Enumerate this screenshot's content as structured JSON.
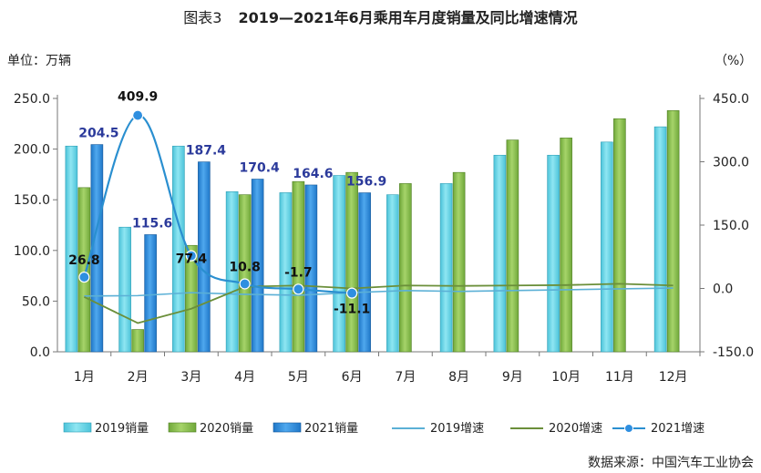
{
  "header": {
    "figure_label": "图表3",
    "title": "2019—2021年6月乘用车月度销量及同比增速情况"
  },
  "units": {
    "left": "单位：万辆",
    "right": "（%）"
  },
  "source": "数据来源：中国汽车工业协会",
  "colors": {
    "s2019": "#4cc3d9",
    "s2020": "#70a83a",
    "s2021": "#1f77c8",
    "g2019": "#5bb0d6",
    "g2020": "#6b8f3a",
    "g2021": "#2a8fd0",
    "label2021": "#2b3a9b"
  },
  "chart_data": {
    "type": "bar",
    "categories": [
      "1月",
      "2月",
      "3月",
      "4月",
      "5月",
      "6月",
      "7月",
      "8月",
      "9月",
      "10月",
      "11月",
      "12月"
    ],
    "y_left": {
      "lim": [
        0,
        250
      ],
      "ticks": [
        "0.0",
        "50.0",
        "100.0",
        "150.0",
        "200.0",
        "250.0"
      ]
    },
    "y_right": {
      "lim": [
        -150,
        450
      ],
      "ticks": [
        "-150.0",
        "0.0",
        "150.0",
        "300.0",
        "450.0"
      ]
    },
    "grid": false,
    "legend_position": "bottom",
    "bar_series": [
      {
        "name": "2019销量",
        "values": [
          203,
          123,
          203,
          158,
          157,
          174,
          155,
          166,
          194,
          194,
          207,
          222
        ]
      },
      {
        "name": "2020销量",
        "values": [
          162,
          22,
          105,
          155,
          168,
          177,
          166,
          177,
          209,
          211,
          230,
          238
        ]
      },
      {
        "name": "2021销量",
        "values": [
          204.5,
          115.6,
          187.4,
          170.4,
          164.6,
          156.9
        ]
      }
    ],
    "line_series": [
      {
        "name": "2019增速",
        "values": [
          -18,
          -17,
          -10,
          -14,
          -16,
          -10,
          -5,
          -7,
          -5,
          -3,
          -1,
          1
        ]
      },
      {
        "name": "2020增速",
        "values": [
          -20,
          -82,
          -48,
          4,
          7,
          0,
          7,
          6,
          7,
          8,
          11,
          7
        ]
      },
      {
        "name": "2021增速",
        "values": [
          26.8,
          409.9,
          77.4,
          10.8,
          -1.7,
          -11.1
        ]
      }
    ],
    "data_labels": {
      "bars_2021": [
        "204.5",
        "115.6",
        "187.4",
        "170.4",
        "164.6",
        "156.9"
      ],
      "growth_2021": [
        "26.8",
        "409.9",
        "77.4",
        "10.8",
        "-1.7",
        "-11.1"
      ]
    }
  }
}
